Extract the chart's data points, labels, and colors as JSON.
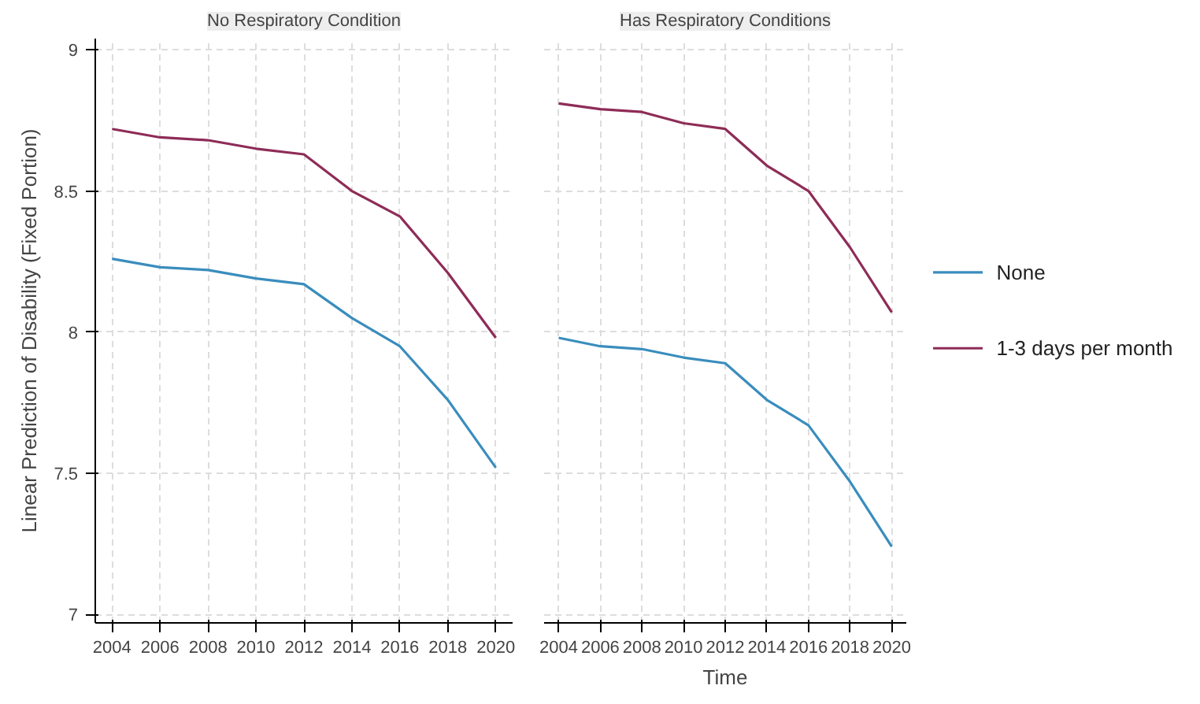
{
  "chart_data": [
    {
      "type": "line",
      "title": "No Respiratory Condition",
      "ylabel": "Linear Prediction of Disability (Fixed Portion)",
      "x": [
        2004,
        2006,
        2008,
        2010,
        2012,
        2014,
        2016,
        2018,
        2020
      ],
      "series": [
        {
          "color": "#3a8dbd",
          "values": [
            8.26,
            8.23,
            8.22,
            8.19,
            8.17,
            8.05,
            7.95,
            7.76,
            7.52
          ]
        },
        {
          "color": "#8e2c57",
          "values": [
            8.72,
            8.69,
            8.68,
            8.65,
            8.63,
            8.5,
            8.41,
            8.21,
            7.98
          ]
        }
      ],
      "xlim": [
        2003.3,
        2020.7
      ],
      "xticks": [
        2004,
        2006,
        2008,
        2010,
        2012,
        2014,
        2016,
        2018,
        2020
      ],
      "ylim": [
        6.97,
        9.04
      ],
      "yticks": [
        7,
        7.5,
        8,
        8.5,
        9
      ],
      "grid": true,
      "legend": false
    },
    {
      "type": "line",
      "title": "Has Respiratory Conditions",
      "xlabel": "Time",
      "x": [
        2004,
        2006,
        2008,
        2010,
        2012,
        2014,
        2016,
        2018,
        2020
      ],
      "series": [
        {
          "name": "None",
          "color": "#3a8dbd",
          "values": [
            7.98,
            7.95,
            7.94,
            7.91,
            7.89,
            7.76,
            7.67,
            7.47,
            7.24
          ]
        },
        {
          "name": "1-3 days per month",
          "color": "#8e2c57",
          "values": [
            8.81,
            8.79,
            8.78,
            8.74,
            8.72,
            8.59,
            8.5,
            8.3,
            8.07
          ]
        }
      ],
      "xlim": [
        2003.3,
        2020.7
      ],
      "xticks": [
        2004,
        2006,
        2008,
        2010,
        2012,
        2014,
        2016,
        2018,
        2020
      ],
      "ylim": [
        6.97,
        9.04
      ],
      "yticks": [
        7,
        7.5,
        8,
        8.5,
        9
      ],
      "grid": true,
      "legend": "right",
      "tick_labels": "x"
    }
  ]
}
